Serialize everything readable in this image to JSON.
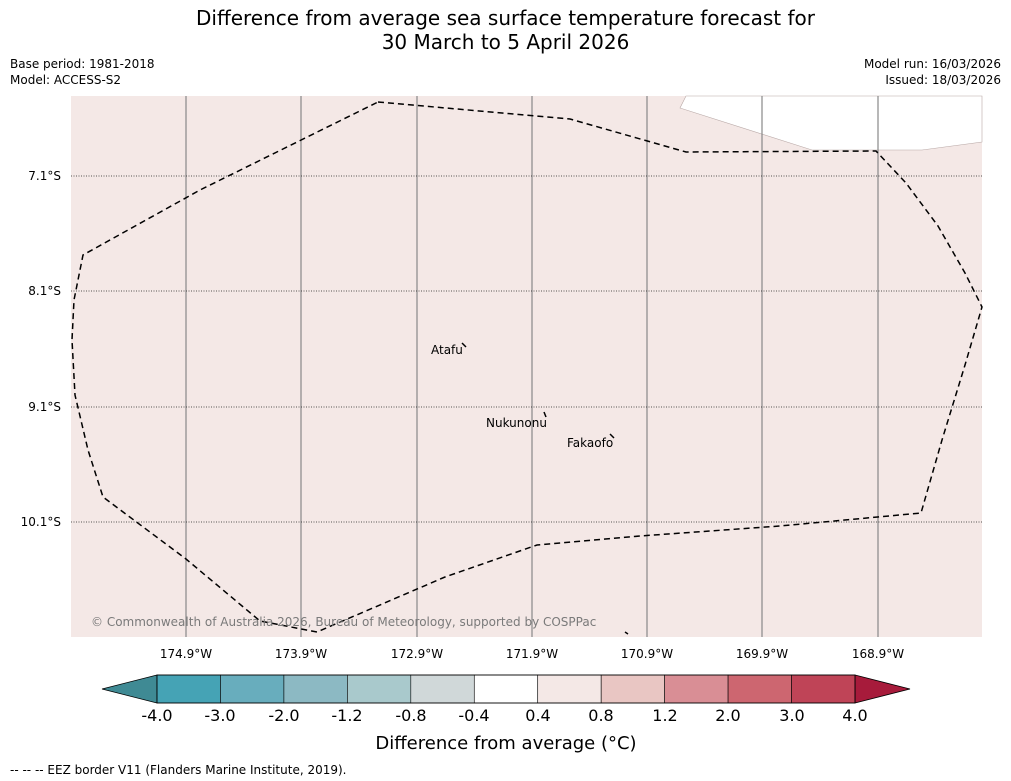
{
  "title": {
    "line1": "Difference from average sea surface temperature forecast for",
    "line2": "30 March to 5 April 2026"
  },
  "meta_left": {
    "base_period": "Base period: 1981-2018",
    "model": "Model: ACCESS-S2"
  },
  "meta_right": {
    "model_run": "Model run: 16/03/2026",
    "issued": "Issued: 18/03/2026"
  },
  "map": {
    "latitudes": [
      "7.1°S",
      "8.1°S",
      "9.1°S",
      "10.1°S"
    ],
    "longitudes": [
      "174.9°W",
      "173.9°W",
      "172.9°W",
      "171.9°W",
      "170.9°W",
      "169.9°W",
      "168.9°W"
    ],
    "places": [
      "Atafu",
      "Nukunonu",
      "Fakaofo"
    ],
    "copyright": "© Commonwealth of Australia 2026, Bureau of Meteorology, supported by COSPPac",
    "field_color": "#f4e8e6",
    "land_color": "#ffffff"
  },
  "colorbar": {
    "title": "Difference from average (°C)",
    "ticks": [
      "-4.0",
      "-3.0",
      "-2.0",
      "-1.2",
      "-0.8",
      "-0.4",
      "0.4",
      "0.8",
      "1.2",
      "2.0",
      "3.0",
      "4.0"
    ],
    "under_color": "#3f8a94",
    "over_color": "#a71b3b",
    "colors": [
      "#45a3b5",
      "#68adbd",
      "#8cb9c3",
      "#a9c9cc",
      "#d0d8d9",
      "#ffffff",
      "#f4e8e6",
      "#e9c6c3",
      "#d98e95",
      "#cd6670",
      "#bf4457"
    ]
  },
  "footnote": "--  --  -- EEZ border V11 (Flanders Marine Institute, 2019)."
}
